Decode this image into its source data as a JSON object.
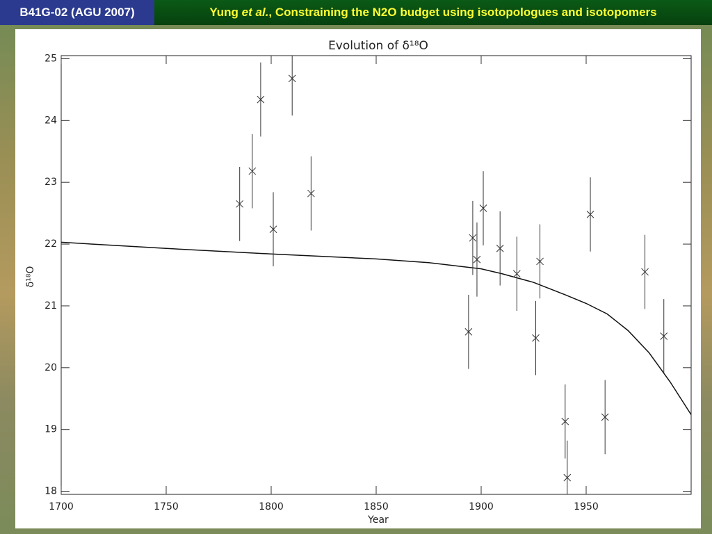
{
  "header": {
    "code": "B41G-02 (AGU 2007)",
    "author": "Yung",
    "etal": "et al.",
    "rest": ", Constraining the N2O budget using isotopologues and isotopomers"
  },
  "chart_data": {
    "type": "scatter",
    "title": "Evolution of δ¹⁸O",
    "x_label": "Year",
    "y_label": "δ¹⁸O",
    "xlim": [
      1700,
      2000
    ],
    "xticks": [
      1700,
      1750,
      1800,
      1850,
      1900,
      1950
    ],
    "ylim": [
      17.95,
      25.05
    ],
    "yticks": [
      18,
      19,
      20,
      21,
      22,
      23,
      24,
      25
    ],
    "color": "#333333",
    "points": {
      "x": [
        1785,
        1791,
        1795,
        1801,
        1810,
        1819,
        1894,
        1896,
        1898,
        1901,
        1909,
        1917,
        1926,
        1928,
        1940,
        1941,
        1952,
        1959,
        1978,
        1987
      ],
      "values": [
        22.65,
        23.18,
        24.34,
        22.24,
        24.68,
        22.82,
        20.58,
        22.1,
        21.75,
        22.58,
        21.93,
        21.52,
        20.48,
        21.72,
        19.13,
        18.22,
        22.48,
        19.2,
        21.55,
        20.51
      ],
      "errors": [
        0.6,
        0.6,
        0.6,
        0.6,
        0.6,
        0.6,
        0.6,
        0.6,
        0.6,
        0.6,
        0.6,
        0.6,
        0.6,
        0.6,
        0.6,
        0.6,
        0.6,
        0.6,
        0.6,
        0.6
      ]
    },
    "curve": {
      "x": [
        1700,
        1750,
        1800,
        1850,
        1875,
        1900,
        1910,
        1925,
        1940,
        1950,
        1960,
        1970,
        1980,
        1990,
        2000
      ],
      "values": [
        22.03,
        21.93,
        21.84,
        21.76,
        21.7,
        21.6,
        21.52,
        21.38,
        21.18,
        21.04,
        20.87,
        20.6,
        20.24,
        19.77,
        19.24
      ]
    }
  }
}
